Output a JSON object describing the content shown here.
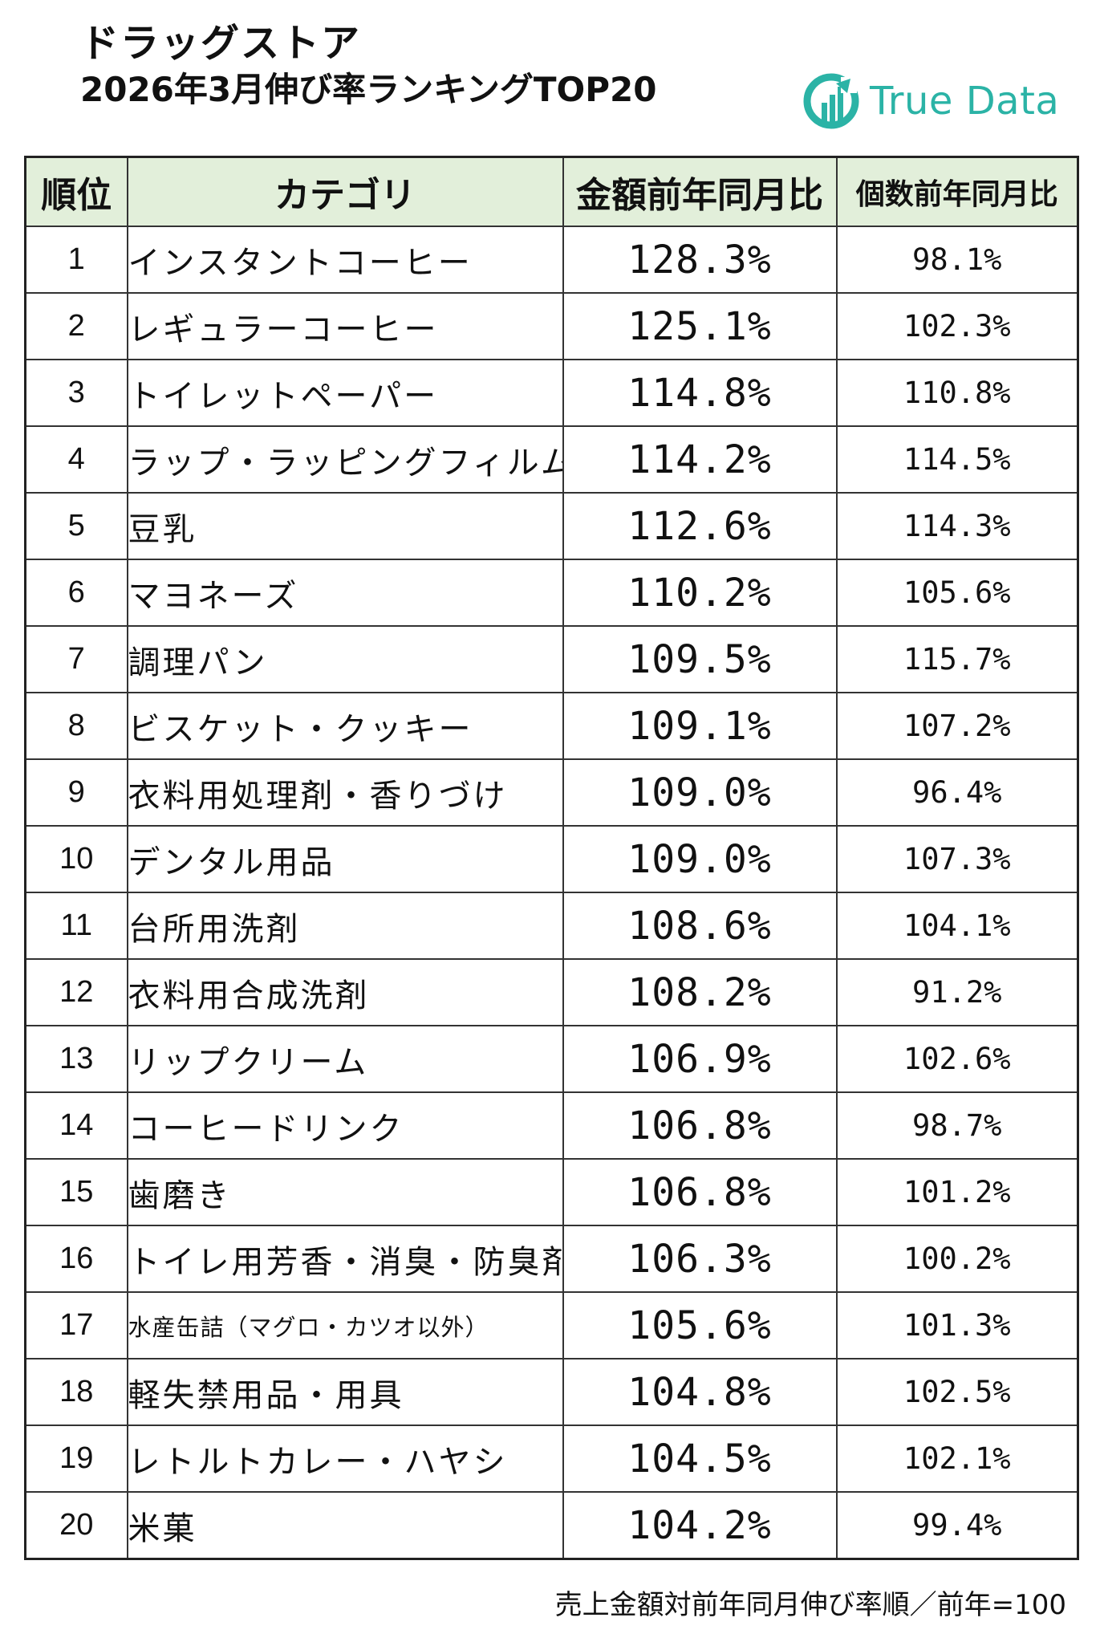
{
  "title": {
    "line1": "ドラッグストア",
    "line2": "2026年3月伸び率ランキングTOP20"
  },
  "logo": {
    "text": "True Data",
    "icon": "truedata-logo-icon",
    "color": "#2bb3a6"
  },
  "table": {
    "header_bg": "#e2efda",
    "columns": {
      "rank": "順位",
      "category": "カテゴリ",
      "amount": "金額前年同月比",
      "quantity": "個数前年同月比"
    },
    "rows": [
      {
        "rank": "1",
        "category": "インスタントコーヒー",
        "amount": "128.3%",
        "quantity": "98.1%"
      },
      {
        "rank": "2",
        "category": "レギュラーコーヒー",
        "amount": "125.1%",
        "quantity": "102.3%"
      },
      {
        "rank": "3",
        "category": "トイレットペーパー",
        "amount": "114.8%",
        "quantity": "110.8%"
      },
      {
        "rank": "4",
        "category": "ラップ・ラッピングフィルム",
        "amount": "114.2%",
        "quantity": "114.5%"
      },
      {
        "rank": "5",
        "category": "豆乳",
        "amount": "112.6%",
        "quantity": "114.3%"
      },
      {
        "rank": "6",
        "category": "マヨネーズ",
        "amount": "110.2%",
        "quantity": "105.6%"
      },
      {
        "rank": "7",
        "category": "調理パン",
        "amount": "109.5%",
        "quantity": "115.7%"
      },
      {
        "rank": "8",
        "category": "ビスケット・クッキー",
        "amount": "109.1%",
        "quantity": "107.2%"
      },
      {
        "rank": "9",
        "category": "衣料用処理剤・香りづけ",
        "amount": "109.0%",
        "quantity": "96.4%"
      },
      {
        "rank": "10",
        "category": "デンタル用品",
        "amount": "109.0%",
        "quantity": "107.3%"
      },
      {
        "rank": "11",
        "category": "台所用洗剤",
        "amount": "108.6%",
        "quantity": "104.1%"
      },
      {
        "rank": "12",
        "category": "衣料用合成洗剤",
        "amount": "108.2%",
        "quantity": "91.2%"
      },
      {
        "rank": "13",
        "category": "リップクリーム",
        "amount": "106.9%",
        "quantity": "102.6%"
      },
      {
        "rank": "14",
        "category": "コーヒードリンク",
        "amount": "106.8%",
        "quantity": "98.7%"
      },
      {
        "rank": "15",
        "category": "歯磨き",
        "amount": "106.8%",
        "quantity": "101.2%"
      },
      {
        "rank": "16",
        "category": "トイレ用芳香・消臭・防臭剤",
        "amount": "106.3%",
        "quantity": "100.2%"
      },
      {
        "rank": "17",
        "category": "水産缶詰（マグロ・カツオ以外）",
        "amount": "105.6%",
        "quantity": "101.3%"
      },
      {
        "rank": "18",
        "category": "軽失禁用品・用具",
        "amount": "104.8%",
        "quantity": "102.5%"
      },
      {
        "rank": "19",
        "category": "レトルトカレー・ハヤシ",
        "amount": "104.5%",
        "quantity": "102.1%"
      },
      {
        "rank": "20",
        "category": "米菓",
        "amount": "104.2%",
        "quantity": "99.4%"
      }
    ]
  },
  "footnote": "売上金額対前年同月伸び率順／前年=100"
}
